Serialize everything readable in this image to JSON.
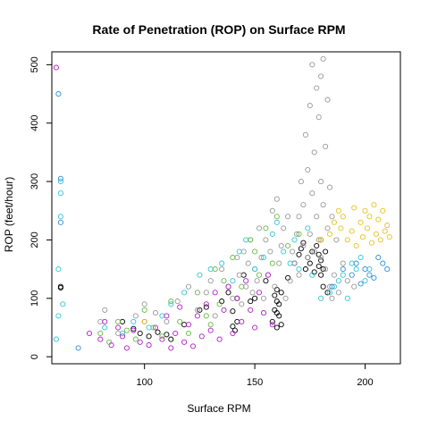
{
  "chart_data": {
    "type": "scatter",
    "title": "Rate of Penetration (ROP) on Surface RPM",
    "xlabel": "Surface RPM",
    "ylabel": "ROP (feet/hour)",
    "xlim": [
      58,
      216
    ],
    "ylim": [
      -12,
      522
    ],
    "xticks": [
      100,
      150,
      200
    ],
    "yticks": [
      0,
      100,
      200,
      300,
      400,
      500
    ],
    "grid": false,
    "legend": "none",
    "marker": "open-circle",
    "colors": {
      "black": "#000000",
      "grey": "#999999",
      "cyan": "#33c5d6",
      "blue": "#2e8fd8",
      "magenta": "#b020c8",
      "green": "#66bb44",
      "yellow": "#e6c21e"
    },
    "series": [
      {
        "color": "black",
        "points": [
          [
            62,
            118
          ],
          [
            62,
            120
          ],
          [
            90,
            60
          ],
          [
            95,
            48
          ],
          [
            98,
            40
          ],
          [
            102,
            35
          ],
          [
            106,
            42
          ],
          [
            110,
            38
          ],
          [
            112,
            30
          ],
          [
            118,
            55
          ],
          [
            125,
            80
          ],
          [
            128,
            85
          ],
          [
            135,
            95
          ],
          [
            138,
            110
          ],
          [
            140,
            78
          ],
          [
            140,
            52
          ],
          [
            141,
            45
          ],
          [
            142,
            60
          ],
          [
            142,
            100
          ],
          [
            145,
            140
          ],
          [
            148,
            95
          ],
          [
            150,
            100
          ],
          [
            155,
            130
          ],
          [
            158,
            60
          ],
          [
            159,
            80
          ],
          [
            159,
            105
          ],
          [
            160,
            50
          ],
          [
            160,
            75
          ],
          [
            160,
            95
          ],
          [
            160,
            115
          ],
          [
            161,
            70
          ],
          [
            161,
            90
          ],
          [
            162,
            55
          ],
          [
            162,
            110
          ],
          [
            165,
            135
          ],
          [
            168,
            160
          ],
          [
            170,
            175
          ],
          [
            171,
            185
          ],
          [
            172,
            195
          ],
          [
            173,
            150
          ],
          [
            174,
            170
          ],
          [
            175,
            160
          ],
          [
            176,
            180
          ],
          [
            177,
            145
          ],
          [
            178,
            190
          ],
          [
            179,
            155
          ],
          [
            179,
            175
          ],
          [
            180,
            140
          ],
          [
            180,
            165
          ],
          [
            180,
            200
          ],
          [
            181,
            120
          ],
          [
            181,
            150
          ],
          [
            182,
            180
          ],
          [
            183,
            110
          ]
        ]
      },
      {
        "color": "grey",
        "points": [
          [
            80,
            60
          ],
          [
            82,
            80
          ],
          [
            88,
            40
          ],
          [
            96,
            70
          ],
          [
            100,
            90
          ],
          [
            105,
            75
          ],
          [
            110,
            60
          ],
          [
            115,
            95
          ],
          [
            120,
            120
          ],
          [
            124,
            80
          ],
          [
            128,
            110
          ],
          [
            130,
            130
          ],
          [
            132,
            70
          ],
          [
            135,
            150
          ],
          [
            138,
            120
          ],
          [
            140,
            100
          ],
          [
            142,
            170
          ],
          [
            143,
            140
          ],
          [
            144,
            90
          ],
          [
            145,
            180
          ],
          [
            146,
            120
          ],
          [
            147,
            160
          ],
          [
            148,
            200
          ],
          [
            149,
            110
          ],
          [
            150,
            150
          ],
          [
            151,
            130
          ],
          [
            152,
            220
          ],
          [
            153,
            170
          ],
          [
            154,
            100
          ],
          [
            155,
            200
          ],
          [
            156,
            140
          ],
          [
            157,
            180
          ],
          [
            158,
            250
          ],
          [
            159,
            120
          ],
          [
            160,
            270
          ],
          [
            161,
            160
          ],
          [
            162,
            190
          ],
          [
            163,
            220
          ],
          [
            164,
            100
          ],
          [
            165,
            240
          ],
          [
            166,
            130
          ],
          [
            167,
            180
          ],
          [
            168,
            160
          ],
          [
            169,
            210
          ],
          [
            170,
            140
          ],
          [
            170,
            240
          ],
          [
            171,
            300
          ],
          [
            172,
            190
          ],
          [
            172,
            260
          ],
          [
            173,
            380
          ],
          [
            174,
            170
          ],
          [
            174,
            320
          ],
          [
            175,
            430
          ],
          [
            175,
            210
          ],
          [
            176,
            280
          ],
          [
            176,
            500
          ],
          [
            177,
            180
          ],
          [
            177,
            350
          ],
          [
            178,
            460
          ],
          [
            178,
            240
          ],
          [
            179,
            200
          ],
          [
            179,
            410
          ],
          [
            180,
            300
          ],
          [
            180,
            480
          ],
          [
            180,
            170
          ],
          [
            181,
            260
          ],
          [
            181,
            510
          ],
          [
            182,
            150
          ],
          [
            182,
            360
          ],
          [
            183,
            220
          ],
          [
            183,
            440
          ],
          [
            184,
            120
          ],
          [
            184,
            290
          ],
          [
            185,
            100
          ],
          [
            185,
            240
          ],
          [
            186,
            140
          ],
          [
            187,
            200
          ],
          [
            188,
            110
          ],
          [
            190,
            160
          ],
          [
            192,
            130
          ],
          [
            195,
            120
          ]
        ]
      },
      {
        "color": "cyan",
        "points": [
          [
            60,
            30
          ],
          [
            61,
            70
          ],
          [
            61,
            150
          ],
          [
            62,
            240
          ],
          [
            62,
            300
          ],
          [
            62,
            280
          ],
          [
            63,
            90
          ],
          [
            82,
            50
          ],
          [
            90,
            40
          ],
          [
            95,
            60
          ],
          [
            102,
            50
          ],
          [
            108,
            70
          ],
          [
            112,
            90
          ],
          [
            118,
            110
          ],
          [
            125,
            140
          ],
          [
            130,
            150
          ],
          [
            135,
            160
          ],
          [
            140,
            130
          ],
          [
            143,
            180
          ],
          [
            146,
            200
          ],
          [
            150,
            150
          ],
          [
            154,
            170
          ],
          [
            158,
            210
          ],
          [
            160,
            230
          ],
          [
            163,
            180
          ],
          [
            166,
            160
          ],
          [
            168,
            200
          ],
          [
            170,
            150
          ],
          [
            174,
            220
          ],
          [
            176,
            140
          ],
          [
            180,
            100
          ],
          [
            184,
            110
          ],
          [
            186,
            120
          ],
          [
            188,
            130
          ],
          [
            190,
            140
          ],
          [
            192,
            100
          ],
          [
            194,
            160
          ],
          [
            196,
            150
          ],
          [
            198,
            170
          ],
          [
            200,
            130
          ],
          [
            202,
            150
          ]
        ]
      },
      {
        "color": "blue",
        "points": [
          [
            61,
            450
          ],
          [
            62,
            305
          ],
          [
            62,
            230
          ],
          [
            70,
            15
          ],
          [
            185,
            120
          ],
          [
            190,
            150
          ],
          [
            194,
            140
          ],
          [
            196,
            160
          ],
          [
            198,
            125
          ],
          [
            200,
            150
          ],
          [
            202,
            140
          ],
          [
            204,
            135
          ],
          [
            206,
            170
          ],
          [
            208,
            160
          ],
          [
            210,
            150
          ]
        ]
      },
      {
        "color": "magenta",
        "points": [
          [
            60,
            495
          ],
          [
            75,
            40
          ],
          [
            80,
            30
          ],
          [
            82,
            60
          ],
          [
            85,
            20
          ],
          [
            88,
            50
          ],
          [
            90,
            35
          ],
          [
            92,
            15
          ],
          [
            95,
            45
          ],
          [
            98,
            25
          ],
          [
            100,
            60
          ],
          [
            102,
            20
          ],
          [
            105,
            50
          ],
          [
            108,
            30
          ],
          [
            110,
            70
          ],
          [
            112,
            15
          ],
          [
            114,
            40
          ],
          [
            116,
            85
          ],
          [
            118,
            25
          ],
          [
            120,
            55
          ],
          [
            122,
            18
          ],
          [
            124,
            70
          ],
          [
            126,
            35
          ],
          [
            128,
            90
          ],
          [
            130,
            45
          ],
          [
            132,
            110
          ],
          [
            134,
            30
          ],
          [
            136,
            80
          ],
          [
            138,
            120
          ],
          [
            140,
            40
          ],
          [
            142,
            100
          ],
          [
            144,
            60
          ],
          [
            146,
            130
          ],
          [
            148,
            80
          ],
          [
            150,
            50
          ],
          [
            152,
            110
          ],
          [
            154,
            75
          ],
          [
            156,
            140
          ],
          [
            158,
            55
          ]
        ]
      },
      {
        "color": "green",
        "points": [
          [
            80,
            40
          ],
          [
            84,
            25
          ],
          [
            88,
            60
          ],
          [
            92,
            45
          ],
          [
            96,
            30
          ],
          [
            100,
            80
          ],
          [
            104,
            50
          ],
          [
            108,
            35
          ],
          [
            112,
            95
          ],
          [
            116,
            60
          ],
          [
            120,
            40
          ],
          [
            124,
            110
          ],
          [
            128,
            70
          ],
          [
            130,
            55
          ],
          [
            132,
            150
          ],
          [
            134,
            90
          ],
          [
            136,
            130
          ],
          [
            140,
            170
          ],
          [
            144,
            120
          ],
          [
            148,
            200
          ],
          [
            150,
            180
          ],
          [
            152,
            140
          ],
          [
            155,
            220
          ],
          [
            158,
            160
          ],
          [
            160,
            240
          ],
          [
            165,
            190
          ],
          [
            170,
            210
          ]
        ]
      },
      {
        "color": "yellow",
        "points": [
          [
            100,
            60
          ],
          [
            180,
            200
          ],
          [
            184,
            210
          ],
          [
            186,
            230
          ],
          [
            188,
            250
          ],
          [
            189,
            220
          ],
          [
            190,
            240
          ],
          [
            192,
            200
          ],
          [
            194,
            215
          ],
          [
            195,
            255
          ],
          [
            196,
            190
          ],
          [
            198,
            230
          ],
          [
            199,
            205
          ],
          [
            200,
            250
          ],
          [
            201,
            220
          ],
          [
            202,
            240
          ],
          [
            203,
            195
          ],
          [
            204,
            260
          ],
          [
            205,
            210
          ],
          [
            206,
            235
          ],
          [
            207,
            200
          ],
          [
            208,
            250
          ],
          [
            209,
            215
          ],
          [
            210,
            225
          ],
          [
            211,
            205
          ]
        ]
      }
    ]
  }
}
